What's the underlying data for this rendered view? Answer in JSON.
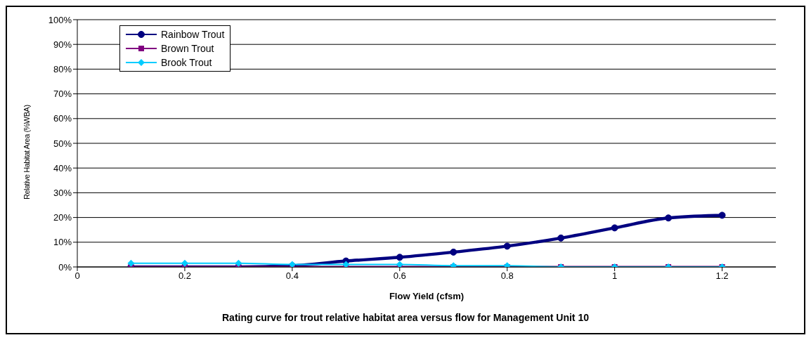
{
  "chart_data": {
    "type": "line",
    "title": "Rating curve for trout relative habitat area versus flow for Management Unit 10",
    "xlabel": "Flow Yield (cfsm)",
    "ylabel": "Relative Habitat Area (%WBA)",
    "xlim": [
      0,
      1.3
    ],
    "xticks": [
      0,
      0.2,
      0.4,
      0.6,
      0.8,
      1,
      1.2
    ],
    "ylim": [
      0,
      100
    ],
    "yticks": [
      {
        "value": 0,
        "label": "0%"
      },
      {
        "value": 10,
        "label": "10%"
      },
      {
        "value": 20,
        "label": "20%"
      },
      {
        "value": 30,
        "label": "30%"
      },
      {
        "value": 40,
        "label": "40%"
      },
      {
        "value": 50,
        "label": "50%"
      },
      {
        "value": 60,
        "label": "60%"
      },
      {
        "value": 70,
        "label": "70%"
      },
      {
        "value": 80,
        "label": "80%"
      },
      {
        "value": 90,
        "label": "90%"
      },
      {
        "value": 100,
        "label": "100%"
      }
    ],
    "grid": "y",
    "legend": "top left",
    "line_style": "solid",
    "x": [
      0.1,
      0.2,
      0.3,
      0.4,
      0.5,
      0.6,
      0.7,
      0.8,
      0.9,
      1,
      1.1,
      1.2
    ],
    "series": [
      {
        "name": "Rainbow Trout",
        "color": "#000080",
        "marker": "circle",
        "values": [
          0,
          0,
          0,
          0.5,
          2.4,
          3.9,
          6.0,
          8.4,
          11.7,
          15.8,
          19.8,
          20.9
        ]
      },
      {
        "name": "Brown Trout",
        "color": "#800080",
        "marker": "square",
        "values": [
          0,
          0,
          0,
          0,
          0,
          0,
          0,
          0,
          0,
          0,
          0,
          0
        ]
      },
      {
        "name": "Brook Trout",
        "color": "#00ccff",
        "marker": "diamond",
        "values": [
          1.5,
          1.5,
          1.5,
          1.0,
          1.0,
          1.0,
          0.5,
          0.5,
          0,
          0,
          0,
          0
        ]
      }
    ]
  }
}
